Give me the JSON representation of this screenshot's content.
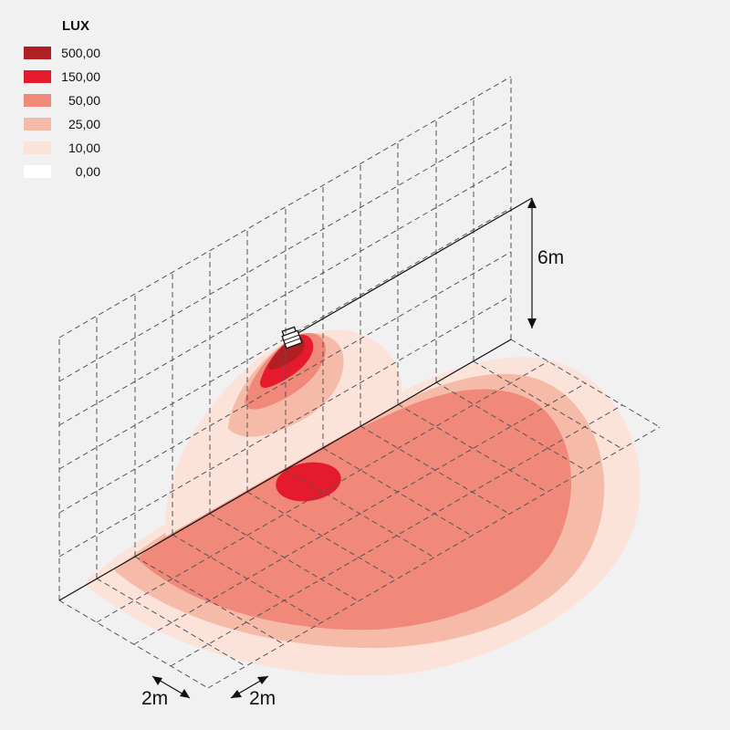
{
  "legend": {
    "title": "LUX",
    "items": [
      {
        "label": "500,00",
        "color": "#b01f24"
      },
      {
        "label": "150,00",
        "color": "#e51b2d"
      },
      {
        "label": "50,00",
        "color": "#f0897a"
      },
      {
        "label": "25,00",
        "color": "#f6bba8"
      },
      {
        "label": "10,00",
        "color": "#fbe3da"
      },
      {
        "label": "0,00",
        "color": "#ffffff"
      }
    ]
  },
  "dimensions": {
    "height": "6m",
    "grid_x": "2m",
    "grid_y": "2m"
  },
  "colors": {
    "background": "#f1f1f1",
    "grid": "#555555",
    "dimension_line": "#111111"
  },
  "icons": {
    "luminaire": "floodlight-icon"
  }
}
